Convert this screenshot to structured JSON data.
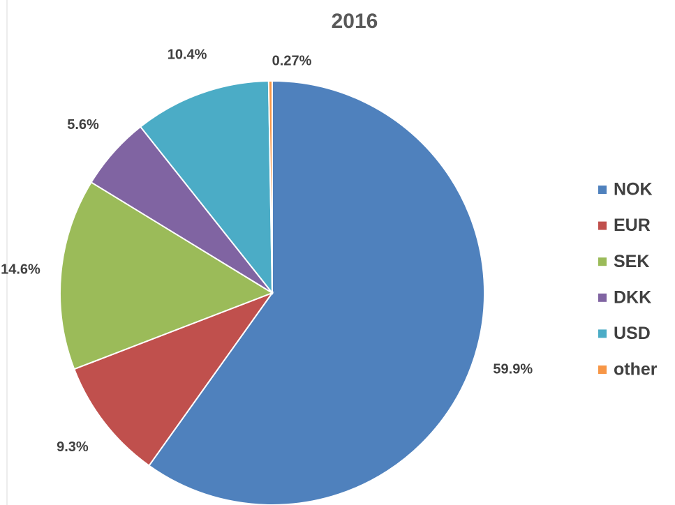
{
  "chart_data": {
    "type": "pie",
    "title": "2016",
    "categories": [
      "NOK",
      "EUR",
      "SEK",
      "DKK",
      "USD",
      "other"
    ],
    "values": [
      59.9,
      9.3,
      14.6,
      5.6,
      10.4,
      0.27
    ],
    "value_labels": [
      "59.9%",
      "9.3%",
      "14.6%",
      "5.6%",
      "10.4%",
      "0.27%"
    ],
    "colors": [
      "#4f81bd",
      "#c0504d",
      "#9bbb59",
      "#8064a2",
      "#4bacc6",
      "#f79646"
    ],
    "legend": "right"
  }
}
